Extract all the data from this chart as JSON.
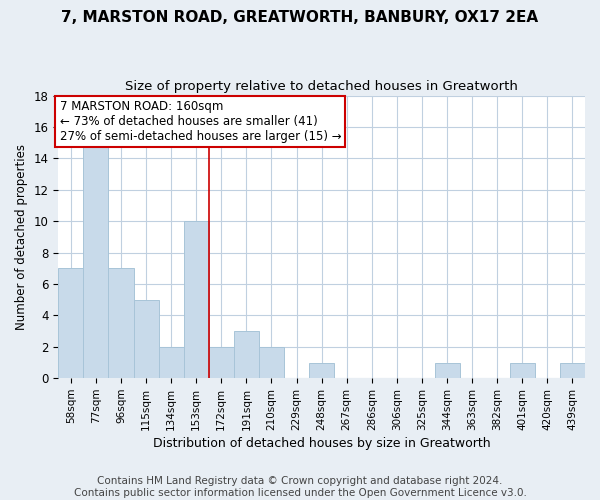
{
  "title": "7, MARSTON ROAD, GREATWORTH, BANBURY, OX17 2EA",
  "subtitle": "Size of property relative to detached houses in Greatworth",
  "xlabel": "Distribution of detached houses by size in Greatworth",
  "ylabel": "Number of detached properties",
  "bin_labels": [
    "58sqm",
    "77sqm",
    "96sqm",
    "115sqm",
    "134sqm",
    "153sqm",
    "172sqm",
    "191sqm",
    "210sqm",
    "229sqm",
    "248sqm",
    "267sqm",
    "286sqm",
    "306sqm",
    "325sqm",
    "344sqm",
    "363sqm",
    "382sqm",
    "401sqm",
    "420sqm",
    "439sqm"
  ],
  "bin_counts": [
    7,
    15,
    7,
    5,
    2,
    10,
    2,
    3,
    2,
    0,
    1,
    0,
    0,
    0,
    0,
    1,
    0,
    0,
    1,
    0,
    1
  ],
  "bar_color": "#c8daea",
  "bar_edge_color": "#a8c4d8",
  "property_line_x": 5.5,
  "property_line_color": "#cc0000",
  "annotation_line1": "7 MARSTON ROAD: 160sqm",
  "annotation_line2": "← 73% of detached houses are smaller (41)",
  "annotation_line3": "27% of semi-detached houses are larger (15) →",
  "annotation_box_color": "#ffffff",
  "annotation_box_edge_color": "#cc0000",
  "ylim": [
    0,
    18
  ],
  "yticks": [
    0,
    2,
    4,
    6,
    8,
    10,
    12,
    14,
    16,
    18
  ],
  "footer": "Contains HM Land Registry data © Crown copyright and database right 2024.\nContains public sector information licensed under the Open Government Licence v3.0.",
  "background_color": "#e8eef4",
  "plot_background_color": "#ffffff",
  "grid_color": "#c0d0e0",
  "title_fontsize": 11,
  "subtitle_fontsize": 9.5,
  "footer_fontsize": 7.5,
  "annotation_fontsize": 8.5
}
